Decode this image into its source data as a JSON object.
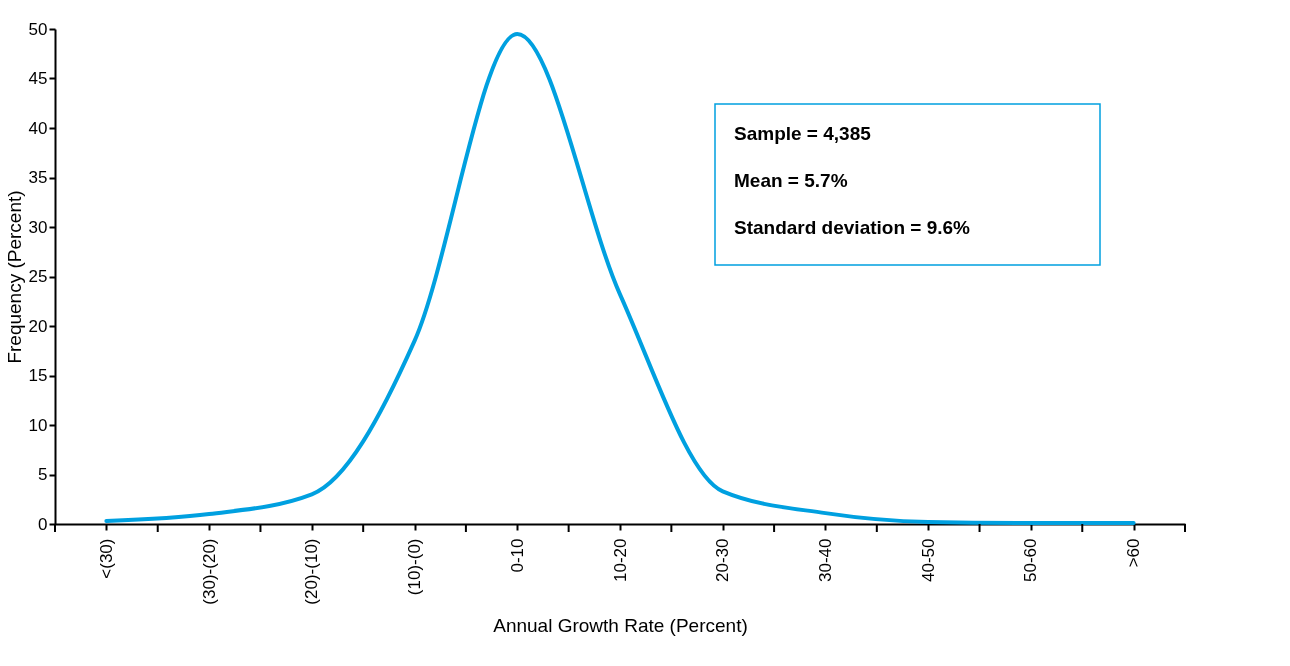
{
  "chart_data": {
    "type": "line",
    "xlabel": "Annual Growth Rate (Percent)",
    "ylabel": "Frequency (Percent)",
    "categories": [
      "<(30)",
      "(30)-(20)",
      "(20)-(10)",
      "(10)-(0)",
      "0-10",
      "10-20",
      "20-30",
      "30-40",
      "40-50",
      "50-60",
      ">60"
    ],
    "series": [
      {
        "color": "#00a0e0",
        "values": [
          0.3,
          1.0,
          3.0,
          18.5,
          49.5,
          23.2,
          3.3,
          1.1,
          0.2,
          0.1,
          0.1
        ]
      }
    ],
    "ylim": [
      0,
      50
    ],
    "yticks": [
      0,
      5,
      10,
      15,
      20,
      25,
      30,
      35,
      40,
      45,
      50
    ],
    "grid": false,
    "marker": "none",
    "line_style": "solid",
    "annotations": [
      "Sample = 4,385",
      "Mean = 5.7%",
      "Standard deviation = 9.6%"
    ]
  }
}
